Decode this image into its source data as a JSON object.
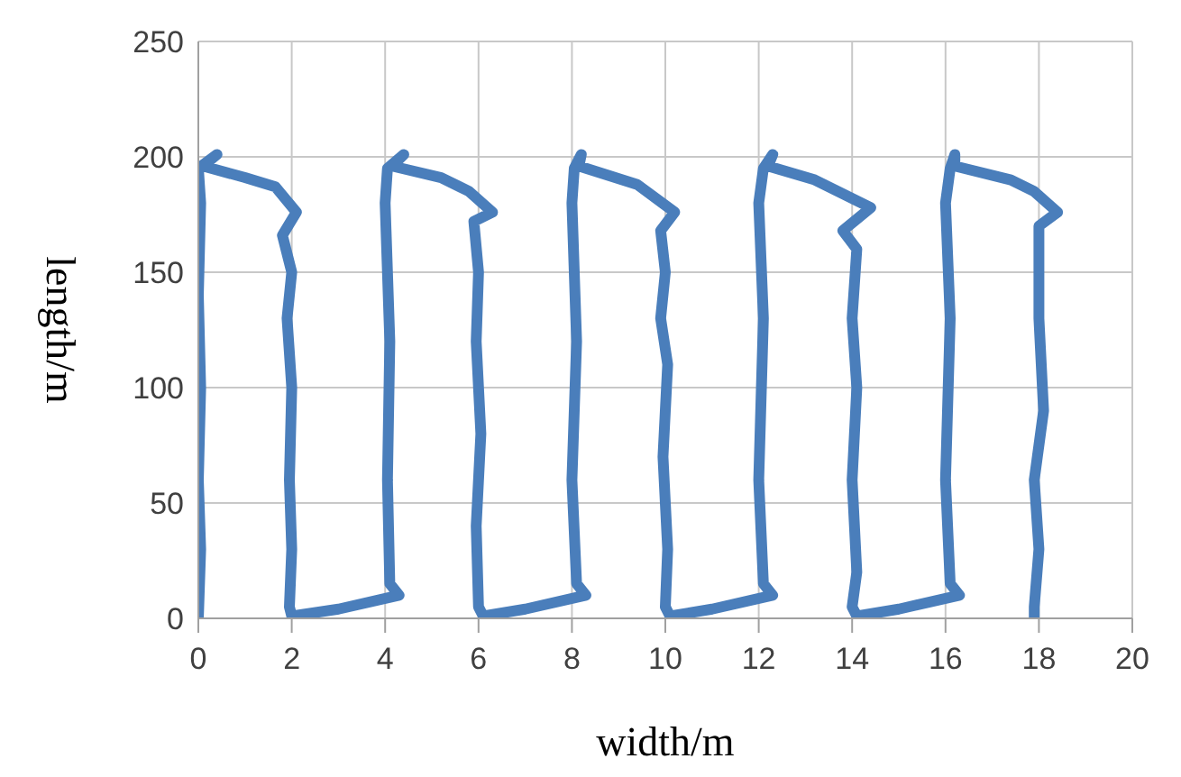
{
  "chart_data": {
    "type": "line",
    "xlabel": "width/m",
    "ylabel": "length/m",
    "xlim": [
      0,
      20
    ],
    "xticks": [
      0,
      2,
      4,
      6,
      8,
      10,
      12,
      14,
      16,
      18,
      20
    ],
    "ylim": [
      0,
      250
    ],
    "yticks": [
      0,
      50,
      100,
      150,
      200,
      250
    ],
    "grid": true,
    "marker": "none",
    "line_style": "solid",
    "series": [
      {
        "color": "#4a7ebb",
        "x": [
          0,
          0.05,
          0,
          0.05,
          0,
          0.05,
          0,
          0.4,
          0.1,
          1.0,
          1.65,
          2.1,
          1.8,
          2.0,
          1.9,
          2.0,
          1.95,
          2.0,
          1.95,
          2.0,
          3.0,
          4.3,
          4.1,
          4.05,
          4.1,
          4.0,
          4.05,
          4.4,
          4.15,
          5.2,
          5.8,
          6.3,
          5.9,
          6.0,
          5.95,
          6.05,
          5.95,
          6.0,
          6.1,
          7.0,
          8.3,
          8.1,
          8.0,
          8.1,
          8.0,
          8.05,
          8.2,
          8.15,
          9.4,
          10.2,
          9.9,
          10.0,
          9.9,
          10.05,
          9.95,
          10.05,
          10.0,
          10.1,
          11.0,
          12.3,
          12.1,
          12.0,
          12.1,
          12.0,
          12.1,
          12.3,
          12.2,
          13.2,
          14.4,
          13.8,
          14.1,
          14.0,
          14.1,
          14.0,
          14.1,
          14.0,
          14.1,
          15.0,
          16.3,
          16.1,
          16.0,
          16.1,
          16.0,
          16.1,
          16.2,
          16.2,
          17.4,
          17.9,
          18.4,
          18.0,
          18.0,
          18.1,
          17.9,
          18.0,
          17.9,
          17.9
        ],
        "values": [
          0,
          30,
          60,
          100,
          140,
          180,
          195,
          201,
          196,
          191,
          187,
          176,
          166,
          150,
          130,
          100,
          60,
          30,
          5,
          1,
          4,
          10,
          15,
          60,
          120,
          180,
          195,
          201,
          196,
          191,
          185,
          176,
          172,
          150,
          120,
          80,
          40,
          5,
          1,
          4,
          10,
          15,
          60,
          120,
          180,
          195,
          201,
          196,
          188,
          176,
          168,
          150,
          130,
          110,
          70,
          30,
          5,
          1,
          4,
          10,
          15,
          60,
          130,
          180,
          195,
          201,
          196,
          190,
          178,
          168,
          160,
          130,
          100,
          60,
          20,
          5,
          1,
          4,
          10,
          15,
          60,
          130,
          180,
          195,
          201,
          196,
          190,
          185,
          176,
          170,
          130,
          90,
          60,
          30,
          5,
          0
        ]
      }
    ]
  }
}
